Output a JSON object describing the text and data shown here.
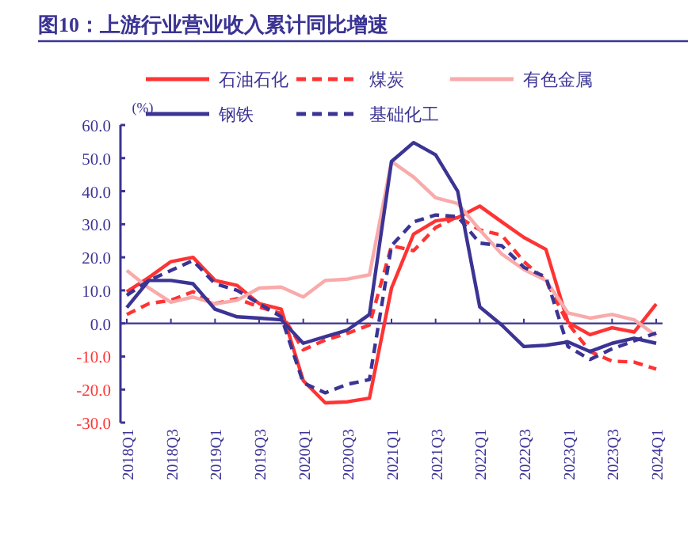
{
  "chart_data": {
    "type": "line",
    "title": "图10：上游行业营业收入累计同比增速",
    "ylabel": "(%)",
    "categories": [
      "2018Q1",
      null,
      "2018Q3",
      null,
      "2019Q1",
      null,
      "2019Q3",
      null,
      "2020Q1",
      null,
      "2020Q3",
      null,
      "2021Q1",
      null,
      "2021Q3",
      null,
      "2022Q1",
      null,
      "2022Q3",
      null,
      "2023Q1",
      null,
      "2023Q3",
      null,
      "2024Q1"
    ],
    "ylim": [
      -30,
      60
    ],
    "yticks": [
      {
        "value": -30,
        "label": "-30.0"
      },
      {
        "value": -20,
        "label": "-20.0"
      },
      {
        "value": -10,
        "label": "-10.0"
      },
      {
        "value": 0,
        "label": "0.0"
      },
      {
        "value": 10,
        "label": "10.0"
      },
      {
        "value": 20,
        "label": "20.0"
      },
      {
        "value": 30,
        "label": "30.0"
      },
      {
        "value": 40,
        "label": "40.0"
      },
      {
        "value": 50,
        "label": "50.0"
      },
      {
        "value": 60,
        "label": "60.0"
      }
    ],
    "legend": "top",
    "grid": false,
    "ref_lines": [
      {
        "axis": "y",
        "value": 0,
        "color": "#3b3494"
      }
    ],
    "series": [
      {
        "name": "石油石化",
        "color": "#ff3333",
        "line_style": "solid",
        "values": [
          9.6,
          13.9,
          18.7,
          20,
          13,
          11.5,
          6,
          4.3,
          -17.3,
          -24,
          -23.7,
          -22.6,
          10.7,
          27,
          31,
          32,
          35.5,
          30.7,
          26,
          22.4,
          0.3,
          -3.4,
          -1.3,
          -2.6,
          5.9
        ]
      },
      {
        "name": "煤炭",
        "color": "#ff3333",
        "line_style": "dashed",
        "values": [
          2.7,
          6,
          7,
          9.6,
          6,
          7.5,
          5,
          3,
          -8,
          -5,
          -3,
          -0.5,
          23.5,
          22,
          29,
          32.3,
          28.3,
          26.7,
          18.7,
          13,
          0,
          -8.5,
          -11.4,
          -11.7,
          -13.8
        ]
      },
      {
        "name": "有色金属",
        "color": "#f9aaaa",
        "line_style": "solid",
        "values": [
          16,
          10.7,
          6.4,
          8,
          5.9,
          7,
          10.7,
          11,
          8,
          13,
          13.4,
          14.7,
          49,
          44.3,
          38,
          36.3,
          28.3,
          21,
          16.3,
          13,
          3.2,
          1.6,
          2.7,
          1.1,
          -3.7
        ]
      },
      {
        "name": "钢铁",
        "color": "#3b3494",
        "line_style": "solid",
        "values": [
          4.8,
          13,
          13,
          12,
          4.3,
          2,
          1.6,
          1.1,
          -6,
          -4,
          -2,
          2.7,
          49,
          54.7,
          51,
          40,
          5,
          -0.5,
          -7,
          -6.6,
          -5.6,
          -8.5,
          -6,
          -4.5,
          -6
        ]
      },
      {
        "name": "基础化工",
        "color": "#3b3494",
        "line_style": "dashed",
        "values": [
          8.5,
          13,
          16,
          19,
          12,
          10,
          6,
          2,
          -18,
          -21,
          -18.4,
          -17,
          23.5,
          30.7,
          32.8,
          32.3,
          24.3,
          23.5,
          17,
          14,
          -7,
          -10.9,
          -7.7,
          -5.3,
          -2.9
        ]
      }
    ]
  }
}
